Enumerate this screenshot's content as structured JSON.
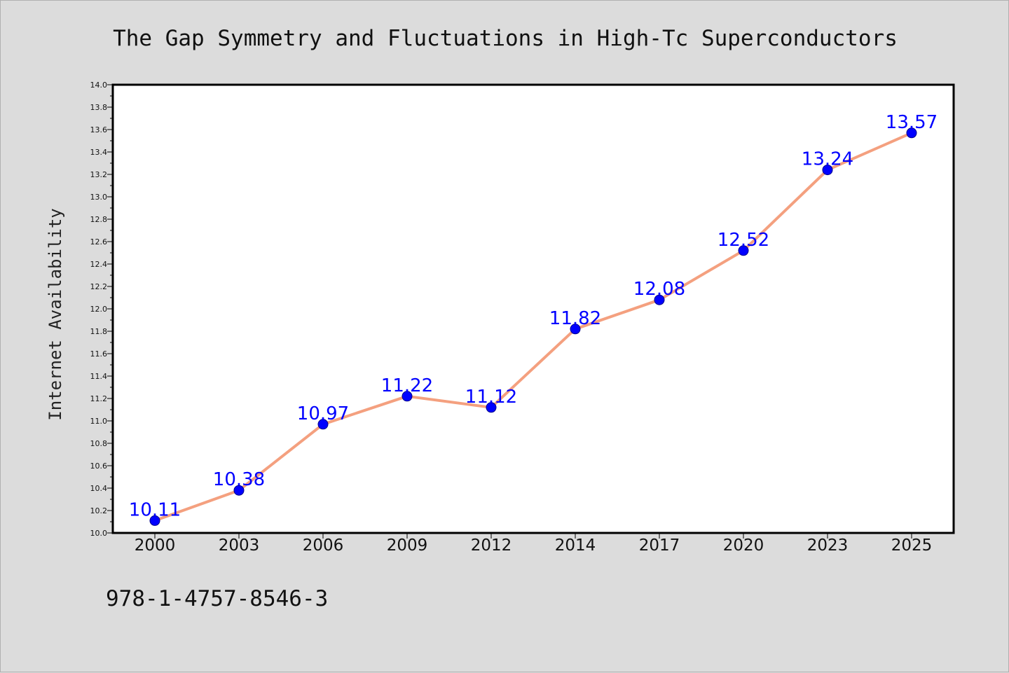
{
  "chart_data": {
    "type": "line",
    "title": "The Gap Symmetry and Fluctuations in High-Tc Superconductors",
    "xlabel": "",
    "ylabel": "Internet Availability",
    "categories": [
      "2000",
      "2003",
      "2006",
      "2009",
      "2012",
      "2014",
      "2017",
      "2020",
      "2023",
      "2025"
    ],
    "series": [
      {
        "values": [
          10.11,
          10.38,
          10.97,
          11.22,
          11.12,
          11.82,
          12.08,
          12.52,
          13.24,
          13.57
        ],
        "data_labels": [
          "10.11",
          "10.38",
          "10.97",
          "11.22",
          "11.12",
          "11.82",
          "12.08",
          "12.52",
          "13.24",
          "13.57"
        ]
      }
    ],
    "ylim": [
      10.0,
      14.0
    ],
    "yticks": [
      "10.0",
      "10.2",
      "10.4",
      "10.6",
      "10.8",
      "11.0",
      "11.2",
      "11.4",
      "11.6",
      "11.8",
      "12.0",
      "12.2",
      "12.4",
      "12.6",
      "12.8",
      "13.0",
      "13.2",
      "13.4",
      "13.6",
      "13.8",
      "14.0"
    ],
    "grid": false,
    "legend": "none",
    "colors": {
      "line": "#f4a07f",
      "marker": "#0000ff",
      "data_label": "#0000ff",
      "background": "#dcdcdc",
      "plot_background": "#ffffff"
    }
  },
  "footer": {
    "code": "978-1-4757-8546-3"
  }
}
